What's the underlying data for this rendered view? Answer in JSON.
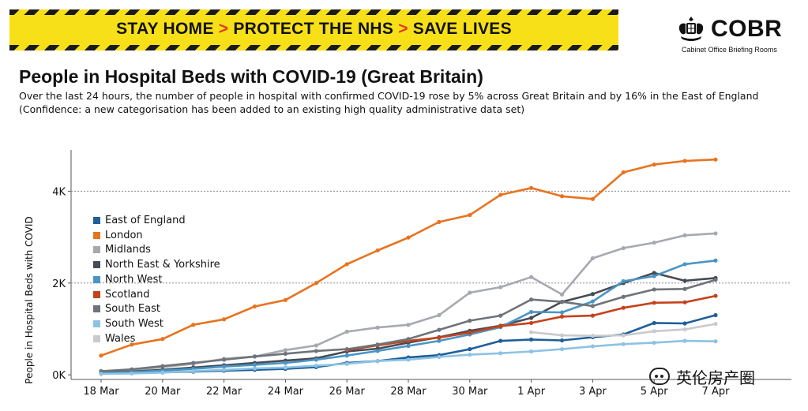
{
  "banner": {
    "part1": "STAY HOME",
    "part2": "PROTECT THE NHS",
    "part3": "SAVE LIVES",
    "separator": ">",
    "background": "#f7e017",
    "separator_color": "#e23a1f"
  },
  "logo": {
    "name": "COBR",
    "subtitle": "Cabinet Office Briefing Rooms",
    "icon": "royal-crest-icon"
  },
  "header": {
    "title": "People in Hospital Beds with COVID-19 (Great Britain)",
    "subtitle_line1": "Over the last 24 hours, the number of people in hospital with confirmed COVID-19 rose by 5% across Great Britain and by 16% in the East of England",
    "subtitle_line2": "(Confidence: a new categorisation has been added to an existing high quality administrative data set)"
  },
  "watermark": {
    "icon": "wechat-icon",
    "text": "英伦房产圈"
  },
  "chart_data": {
    "type": "line",
    "title": "People in Hospital Beds with COVID-19 (Great Britain)",
    "ylabel": "People in Hospital Beds with COVID",
    "xlabel": "",
    "x": [
      "18 Mar",
      "19 Mar",
      "20 Mar",
      "21 Mar",
      "22 Mar",
      "23 Mar",
      "24 Mar",
      "25 Mar",
      "26 Mar",
      "27 Mar",
      "28 Mar",
      "29 Mar",
      "30 Mar",
      "31 Mar",
      "1 Apr",
      "2 Apr",
      "3 Apr",
      "4 Apr",
      "5 Apr",
      "6 Apr",
      "7 Apr"
    ],
    "x_tick_labels": [
      "18 Mar",
      "20 Mar",
      "22 Mar",
      "24 Mar",
      "26 Mar",
      "28 Mar",
      "30 Mar",
      "1 Apr",
      "3 Apr",
      "5 Apr",
      "7 Apr"
    ],
    "y_ticks": [
      {
        "value": 0,
        "label": "0K"
      },
      {
        "value": 2000,
        "label": "2K"
      },
      {
        "value": 4000,
        "label": "4K"
      }
    ],
    "ylim": [
      -100,
      4900
    ],
    "grid": "horizontal dotted at 2K and 4K",
    "legend_position": "left",
    "series": [
      {
        "name": "East of England",
        "color": "#1f5f9a",
        "values": [
          30,
          40,
          55,
          70,
          90,
          110,
          130,
          170,
          260,
          300,
          380,
          430,
          560,
          740,
          770,
          750,
          820,
          880,
          1130,
          1120,
          1300
        ]
      },
      {
        "name": "London",
        "color": "#e8731f",
        "values": [
          420,
          660,
          780,
          1090,
          1210,
          1490,
          1630,
          2000,
          2410,
          2710,
          2990,
          3330,
          3480,
          3920,
          4070,
          3890,
          3830,
          4410,
          4580,
          4660,
          4690
        ]
      },
      {
        "name": "Midlands",
        "color": "#a6a9af",
        "values": [
          70,
          100,
          170,
          240,
          350,
          400,
          540,
          640,
          940,
          1030,
          1090,
          1300,
          1790,
          1910,
          2130,
          1750,
          2540,
          2760,
          2880,
          3040,
          3080
        ]
      },
      {
        "name": "North East & Yorkshire",
        "color": "#454c55",
        "values": [
          50,
          70,
          110,
          160,
          210,
          260,
          310,
          360,
          510,
          570,
          700,
          820,
          960,
          1070,
          1240,
          1590,
          1760,
          2000,
          2220,
          2050,
          2110
        ]
      },
      {
        "name": "North West",
        "color": "#4a95c5",
        "values": [
          40,
          60,
          90,
          130,
          180,
          220,
          260,
          330,
          420,
          520,
          630,
          740,
          880,
          1040,
          1370,
          1360,
          1600,
          2040,
          2150,
          2410,
          2490
        ]
      },
      {
        "name": "Scotland",
        "color": "#c6421c",
        "values": [
          null,
          null,
          null,
          null,
          null,
          null,
          null,
          null,
          540,
          640,
          740,
          810,
          920,
          1060,
          1130,
          1270,
          1290,
          1460,
          1570,
          1580,
          1720
        ]
      },
      {
        "name": "South East",
        "color": "#6f737a",
        "values": [
          80,
          120,
          190,
          260,
          330,
          400,
          460,
          520,
          560,
          660,
          780,
          980,
          1180,
          1290,
          1640,
          1590,
          1500,
          1700,
          1860,
          1870,
          2070
        ]
      },
      {
        "name": "South West",
        "color": "#8cc3e3",
        "values": [
          20,
          30,
          50,
          80,
          110,
          140,
          160,
          200,
          240,
          300,
          330,
          390,
          440,
          470,
          510,
          560,
          620,
          670,
          700,
          740,
          730
        ]
      },
      {
        "name": "Wales",
        "color": "#c8cacd",
        "values": [
          null,
          null,
          null,
          null,
          null,
          null,
          null,
          null,
          null,
          null,
          null,
          null,
          null,
          null,
          930,
          860,
          850,
          860,
          950,
          990,
          1110
        ]
      }
    ]
  }
}
